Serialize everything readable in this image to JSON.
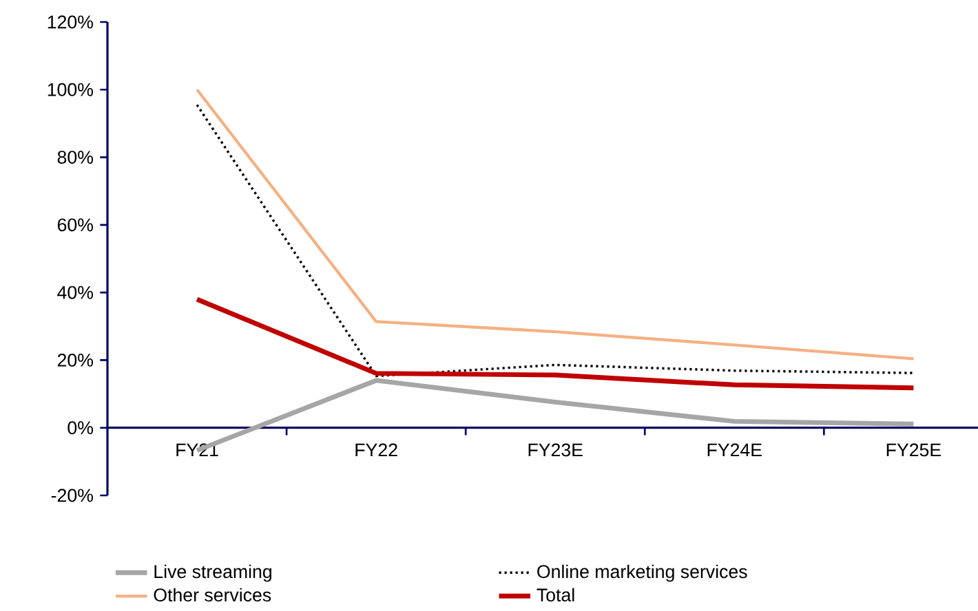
{
  "chart_data": {
    "type": "line",
    "categories": [
      "FY21",
      "FY22",
      "FY23E",
      "FY24E",
      "FY25E"
    ],
    "series": [
      {
        "name": "Live streaming",
        "color": "#a6a6a6",
        "line_style": "solid",
        "values": [
          -6.7,
          14,
          7.6,
          1.9,
          1.1
        ]
      },
      {
        "name": "Online marketing services",
        "color": "#000000",
        "line_style": "dotted",
        "values": [
          95.5,
          15.3,
          18.6,
          16.9,
          16.2
        ]
      },
      {
        "name": "Other services",
        "color": "#f4b183",
        "line_style": "solid",
        "values": [
          100,
          31.4,
          28.4,
          24.5,
          20.4
        ]
      },
      {
        "name": "Total",
        "color": "#c00000",
        "line_style": "solid",
        "values": [
          38,
          16.1,
          15.6,
          12.7,
          11.8
        ]
      }
    ],
    "ylim": [
      -20,
      120
    ],
    "yticks": [
      {
        "value": -20,
        "label": "-20%"
      },
      {
        "value": 0,
        "label": "0%"
      },
      {
        "value": 20,
        "label": "20%"
      },
      {
        "value": 40,
        "label": "40%"
      },
      {
        "value": 60,
        "label": "60%"
      },
      {
        "value": 80,
        "label": "80%"
      },
      {
        "value": 100,
        "label": "100%"
      },
      {
        "value": 120,
        "label": "120%"
      }
    ],
    "grid": false,
    "legend": "bottom",
    "marker": "none"
  }
}
